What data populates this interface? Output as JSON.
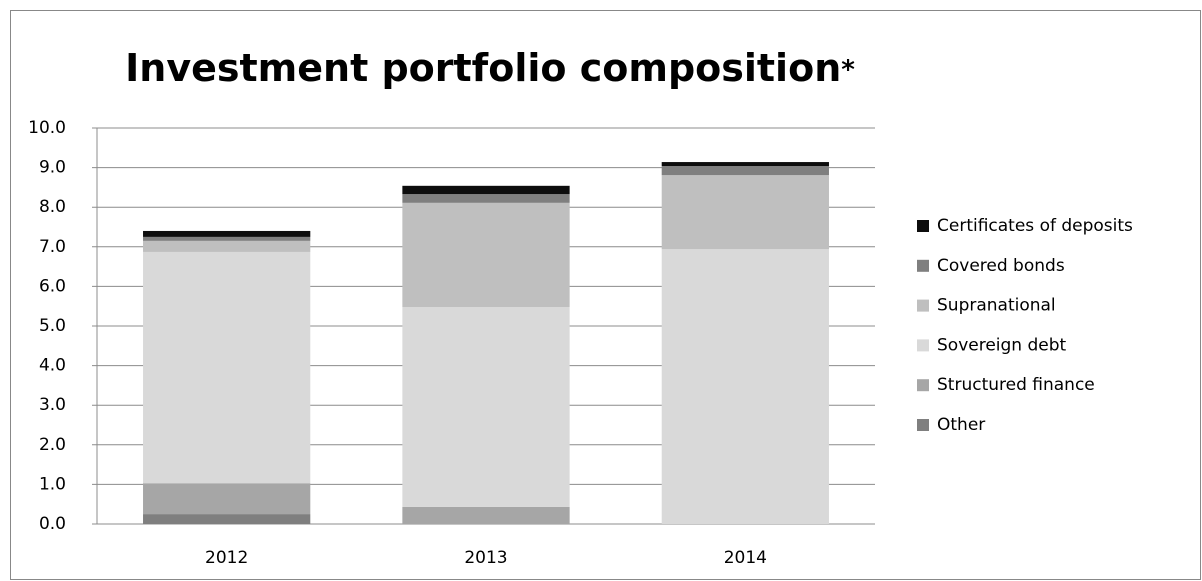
{
  "chart_data": {
    "type": "stacked_bar",
    "title": "Investment portfolio composition",
    "title_note": "*",
    "categories": [
      "2012",
      "2013",
      "2014"
    ],
    "series": [
      {
        "name": "Other",
        "color": "#7f7f7f",
        "values": [
          0.25,
          0,
          0
        ]
      },
      {
        "name": "Structured finance",
        "color": "#a6a6a6",
        "values": [
          0.78,
          0.43,
          0
        ]
      },
      {
        "name": "Sovereign debt",
        "color": "#d9d9d9",
        "values": [
          5.84,
          5.05,
          6.94
        ]
      },
      {
        "name": "Supranational",
        "color": "#bfbfbf",
        "values": [
          0.28,
          2.63,
          1.87
        ]
      },
      {
        "name": "Covered bonds",
        "color": "#7f7f7f",
        "values": [
          0.1,
          0.22,
          0.23
        ]
      },
      {
        "name": "Certificates of deposits",
        "color": "#0d0d0d",
        "values": [
          0.15,
          0.21,
          0.1
        ]
      }
    ],
    "ylim": [
      0,
      10
    ],
    "yticks": [
      {
        "value": 0,
        "label": "0.0"
      },
      {
        "value": 1,
        "label": "1.0"
      },
      {
        "value": 2,
        "label": "2.0"
      },
      {
        "value": 3,
        "label": "3.0"
      },
      {
        "value": 4,
        "label": "4.0"
      },
      {
        "value": 5,
        "label": "5.0"
      },
      {
        "value": 6,
        "label": "6.0"
      },
      {
        "value": 7,
        "label": "7.0"
      },
      {
        "value": 8,
        "label": "8.0"
      },
      {
        "value": 9,
        "label": "9.0"
      },
      {
        "value": 10,
        "label": "10.0"
      }
    ],
    "grid": true,
    "legend": "right"
  }
}
